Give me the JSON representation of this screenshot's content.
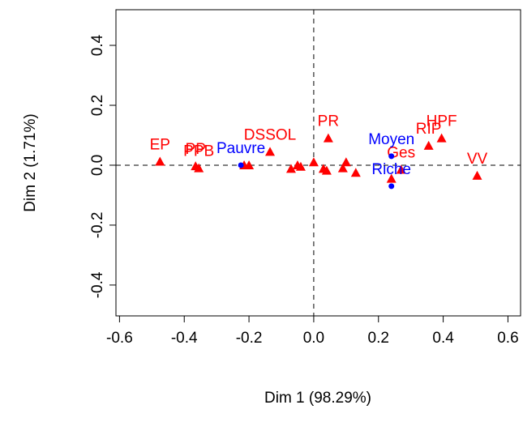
{
  "chart_data": {
    "type": "scatter",
    "x_label": "Dim 1 (98.29%)",
    "y_label": "Dim 2 (1.71%)",
    "xlim": [
      -0.611,
      0.639
    ],
    "ylim": [
      -0.503,
      0.519
    ],
    "xticks": [
      -0.6,
      -0.4,
      -0.2,
      {
        "value": 0,
        "label": "0.0"
      },
      0.2,
      0.4,
      0.6
    ],
    "yticks": [
      -0.4,
      -0.2,
      {
        "value": 0,
        "label": "0.0"
      },
      0.2,
      0.4
    ],
    "reference_lines": true,
    "series": [
      {
        "color": "#ff0000",
        "marker": "triangle",
        "x": [
          -0.475,
          -0.365,
          -0.355,
          -0.215,
          -0.2,
          -0.135,
          -0.07,
          -0.05,
          -0.04,
          0.0,
          0.03,
          0.04,
          0.045,
          0.09,
          0.1,
          0.13,
          0.24,
          0.27,
          0.355,
          0.395,
          0.505
        ],
        "y": [
          0.012,
          -0.003,
          -0.01,
          0.0,
          0.0,
          0.045,
          -0.012,
          0.0,
          -0.005,
          0.01,
          -0.012,
          -0.018,
          0.09,
          -0.01,
          0.01,
          -0.025,
          -0.045,
          -0.015,
          0.065,
          0.09,
          -0.035
        ],
        "labels": [
          "EP",
          "PP",
          "PPB",
          null,
          null,
          "DSSOL",
          null,
          null,
          null,
          null,
          null,
          null,
          "PR",
          null,
          null,
          null,
          null,
          "Ges",
          "RIP",
          "HPF",
          "VV"
        ]
      },
      {
        "color": "#0000ff",
        "marker": "dot",
        "x": [
          -0.225,
          0.24,
          0.24
        ],
        "y": [
          0.0,
          0.03,
          -0.07
        ],
        "labels": [
          "Pauvre",
          "Moyen",
          "Riche"
        ]
      }
    ]
  }
}
